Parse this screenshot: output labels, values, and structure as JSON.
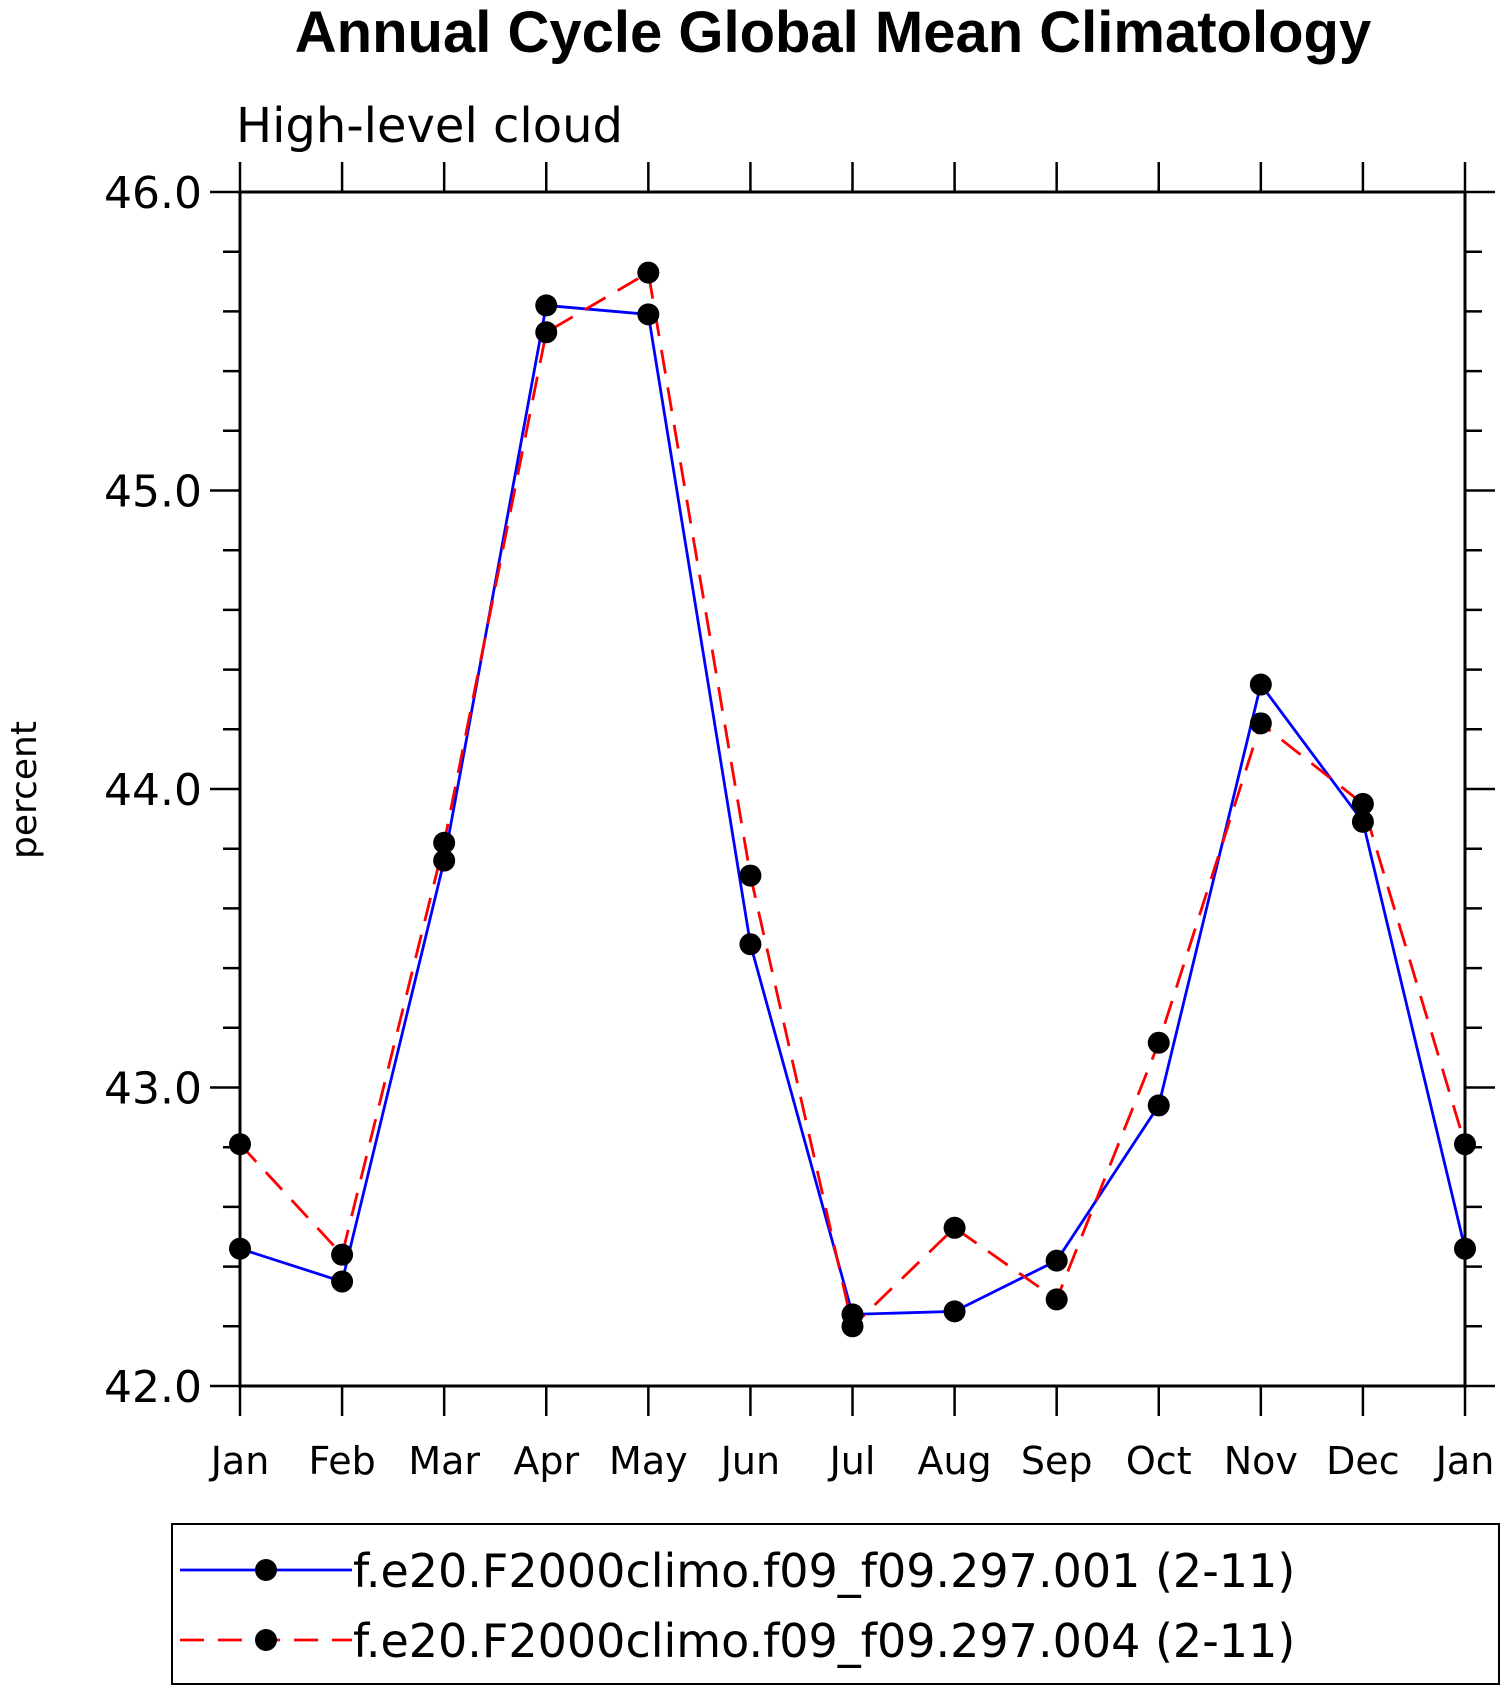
{
  "chart_data": {
    "type": "line",
    "title": "Annual Cycle Global Mean Climatology",
    "subtitle": "High-level cloud",
    "ylabel": "percent",
    "xlabel": "",
    "categories": [
      "Jan",
      "Feb",
      "Mar",
      "Apr",
      "May",
      "Jun",
      "Jul",
      "Aug",
      "Sep",
      "Oct",
      "Nov",
      "Dec",
      "Jan"
    ],
    "ylim": [
      42.0,
      46.0
    ],
    "yticks": [
      "42.0",
      "43.0",
      "44.0",
      "45.0",
      "46.0"
    ],
    "grid": false,
    "legend_position": "bottom",
    "series": [
      {
        "name": "f.e20.F2000climo.f09_f09.297.001 (2-11)",
        "color": "#0000ff",
        "dash": "solid",
        "values": [
          42.46,
          42.35,
          43.76,
          45.62,
          45.59,
          43.48,
          42.24,
          42.25,
          42.42,
          42.94,
          44.35,
          43.89,
          42.46
        ]
      },
      {
        "name": "f.e20.F2000climo.f09_f09.297.004 (2-11)",
        "color": "#ff0000",
        "dash": "dashed",
        "values": [
          42.81,
          42.44,
          43.82,
          45.53,
          45.73,
          43.71,
          42.2,
          42.53,
          42.29,
          43.15,
          44.22,
          43.95,
          42.81
        ]
      }
    ]
  }
}
